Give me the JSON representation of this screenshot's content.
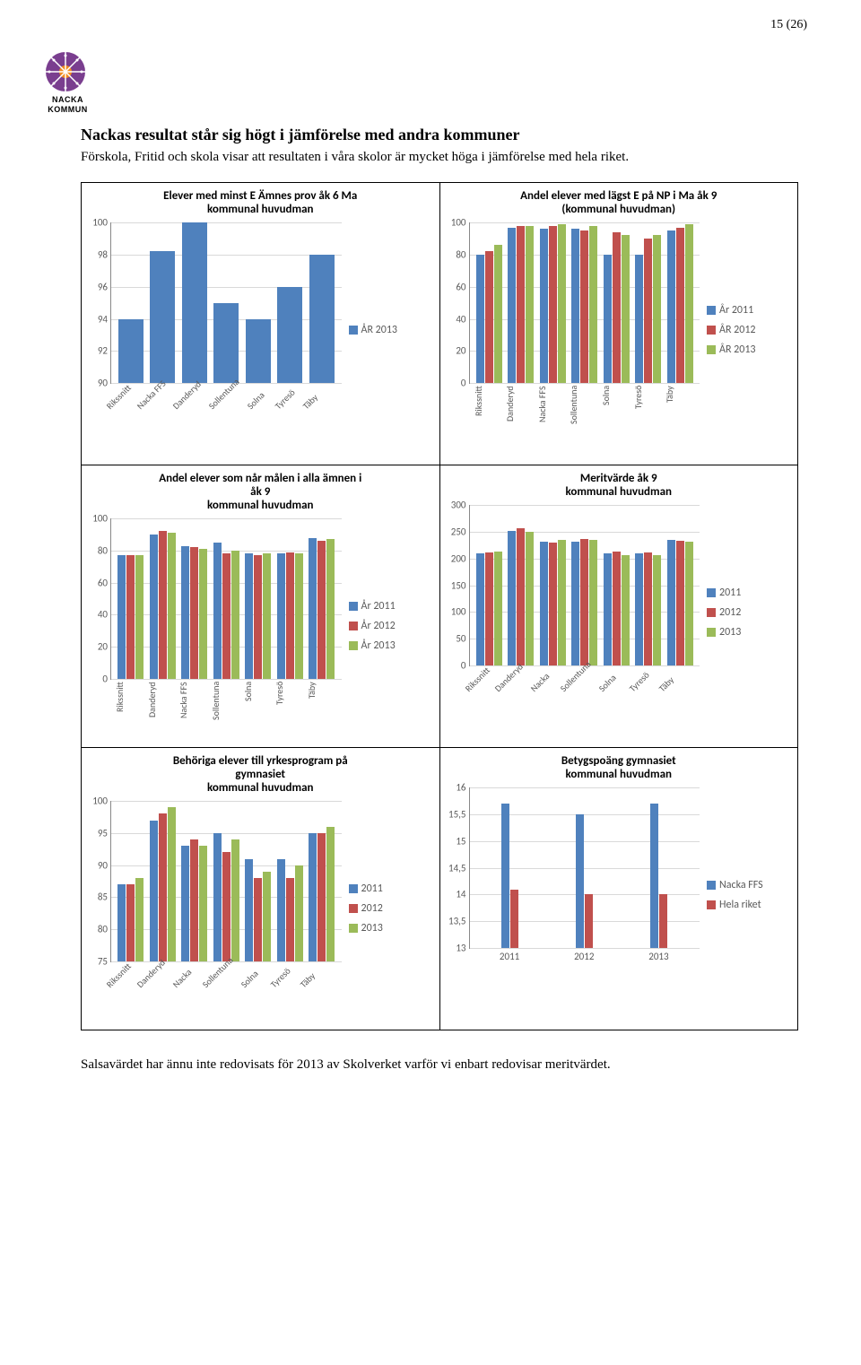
{
  "page_number": "15 (26)",
  "logo": {
    "text_line1": "NACKA",
    "text_line2": "KOMMUN",
    "primary_color": "#7a3e8f",
    "accent_color": "#f28c1e"
  },
  "section_title": "Nackas resultat står sig högt i jämförelse med andra kommuner",
  "intro_text": "Förskola, Fritid och skola visar att resultaten i våra skolor är mycket höga i jämförelse med hela riket.",
  "footer_text": "Salsavärdet har ännu inte redovisats för 2013 av Skolverket varför vi enbart redovisar meritvärdet.",
  "colors": {
    "blue": "#4f81bd",
    "red": "#c0504d",
    "green": "#9bbb59",
    "axis_text": "#595959",
    "grid": "#d9d9d9"
  },
  "charts": {
    "c1": {
      "title": "Elever med minst E Ämnes prov åk 6 Ma\nkommunal huvudman",
      "ymin": 90,
      "ymax": 100,
      "ystep": 2,
      "categories": [
        "Rikssnitt",
        "Nacka FFS",
        "Danderyd",
        "Sollentuna",
        "Solna",
        "Tyresö",
        "Täby"
      ],
      "x_rot": true,
      "series": [
        {
          "label": "ÅR 2013",
          "color": "#4f81bd",
          "values": [
            94,
            98.2,
            100,
            95,
            94,
            96,
            98
          ]
        }
      ]
    },
    "c2": {
      "title": "Andel elever med lägst E på NP i Ma åk 9\n(kommunal huvudman)",
      "ymin": 0,
      "ymax": 100,
      "ystep": 20,
      "categories": [
        "Rikssnitt",
        "Danderyd",
        "Nacka FFS",
        "Sollentuna",
        "Solna",
        "Tyresö",
        "Täby"
      ],
      "x_vert": true,
      "series": [
        {
          "label": "År 2011",
          "color": "#4f81bd",
          "values": [
            80,
            97,
            96,
            96,
            80,
            80,
            95
          ]
        },
        {
          "label": "ÅR 2012",
          "color": "#c0504d",
          "values": [
            82,
            98,
            98,
            95,
            94,
            90,
            97
          ]
        },
        {
          "label": "ÅR 2013",
          "color": "#9bbb59",
          "values": [
            86,
            98,
            99,
            98,
            92,
            92,
            99
          ]
        }
      ]
    },
    "c3": {
      "title": "Andel elever som når målen i alla ämnen i\nåk 9\nkommunal huvudman",
      "ymin": 0,
      "ymax": 100,
      "ystep": 20,
      "categories": [
        "Rikssnitt",
        "Danderyd",
        "Nacka FFS",
        "Sollentuna",
        "Solna",
        "Tyresö",
        "Täby"
      ],
      "x_vert": true,
      "series": [
        {
          "label": "År 2011",
          "color": "#4f81bd",
          "values": [
            77,
            90,
            83,
            85,
            78,
            78,
            88
          ]
        },
        {
          "label": "År 2012",
          "color": "#c0504d",
          "values": [
            77,
            92,
            82,
            78,
            77,
            79,
            86
          ]
        },
        {
          "label": "År 2013",
          "color": "#9bbb59",
          "values": [
            77,
            91,
            81,
            80,
            78,
            78,
            87
          ]
        }
      ]
    },
    "c4": {
      "title": "Meritvärde åk 9\nkommunal huvudman",
      "ymin": 0,
      "ymax": 300,
      "ystep": 50,
      "categories": [
        "Rikssnitt",
        "Danderyd",
        "Nacka",
        "Sollentuna",
        "Solna",
        "Tyresö",
        "Täby"
      ],
      "x_rot": true,
      "series": [
        {
          "label": "2011",
          "color": "#4f81bd",
          "values": [
            210,
            252,
            232,
            232,
            210,
            210,
            235
          ]
        },
        {
          "label": "2012",
          "color": "#c0504d",
          "values": [
            211,
            256,
            230,
            236,
            213,
            212,
            234
          ]
        },
        {
          "label": "2013",
          "color": "#9bbb59",
          "values": [
            213,
            250,
            235,
            235,
            207,
            206,
            232
          ]
        }
      ]
    },
    "c5": {
      "title": "Behöriga elever till yrkesprogram på\ngymnasiet\nkommunal huvudman",
      "ymin": 75,
      "ymax": 100,
      "ystep": 5,
      "categories": [
        "Rikssnitt",
        "Danderyd",
        "Nacka",
        "Sollentuna",
        "Solna",
        "Tyresö",
        "Täby"
      ],
      "x_rot": true,
      "series": [
        {
          "label": "2011",
          "color": "#4f81bd",
          "values": [
            87,
            97,
            93,
            95,
            91,
            91,
            95
          ]
        },
        {
          "label": "2012",
          "color": "#c0504d",
          "values": [
            87,
            98,
            94,
            92,
            88,
            88,
            95
          ]
        },
        {
          "label": "2013",
          "color": "#9bbb59",
          "values": [
            88,
            99,
            93,
            94,
            89,
            90,
            96
          ]
        }
      ]
    },
    "c6": {
      "title": "Betygspoäng gymnasiet\nkommunal huvudman",
      "ymin": 13,
      "ymax": 16,
      "ystep": 0.5,
      "categories": [
        "2011",
        "2012",
        "2013"
      ],
      "x_horiz": true,
      "series": [
        {
          "label": "Nacka FFS",
          "color": "#4f81bd",
          "values": [
            15.7,
            15.5,
            15.7
          ]
        },
        {
          "label": "Hela riket",
          "color": "#c0504d",
          "values": [
            14.1,
            14.0,
            14.0
          ]
        }
      ]
    }
  }
}
